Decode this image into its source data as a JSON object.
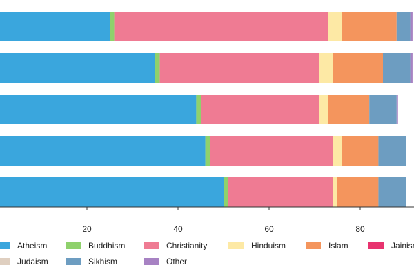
{
  "chart_data": {
    "type": "bar",
    "orientation": "horizontal",
    "stacked": true,
    "categories": [
      "",
      "",
      "",
      "",
      ""
    ],
    "x_ticks": [
      "20",
      "40",
      "60",
      "80"
    ],
    "grid": false,
    "legend_position": "bottom",
    "series": [
      {
        "name": "Atheism",
        "color": "#3aa6dd",
        "values": [
          25,
          35,
          44,
          46,
          50
        ]
      },
      {
        "name": "Buddhism",
        "color": "#8fd16c",
        "values": [
          1,
          1,
          1,
          1,
          1
        ]
      },
      {
        "name": "Christianity",
        "color": "#ef7b93",
        "values": [
          47,
          35,
          26,
          27,
          23
        ]
      },
      {
        "name": "Hinduism",
        "color": "#fde9a5",
        "values": [
          3,
          3,
          2,
          2,
          1
        ]
      },
      {
        "name": "Islam",
        "color": "#f4955d",
        "values": [
          12,
          11,
          9,
          8,
          9
        ]
      },
      {
        "name": "Jainism",
        "color": "#e8336f",
        "values": [
          0,
          0,
          0,
          0,
          0
        ]
      },
      {
        "name": "Judaism",
        "color": "#dfcfc0",
        "values": [
          0,
          0,
          0,
          0,
          0
        ]
      },
      {
        "name": "Sikhism",
        "color": "#6d9dc1",
        "values": [
          3,
          6,
          6,
          6,
          6
        ]
      },
      {
        "name": "Other",
        "color": "#a782c3",
        "values": [
          0.5,
          0.5,
          0.3,
          0,
          0
        ]
      }
    ]
  }
}
